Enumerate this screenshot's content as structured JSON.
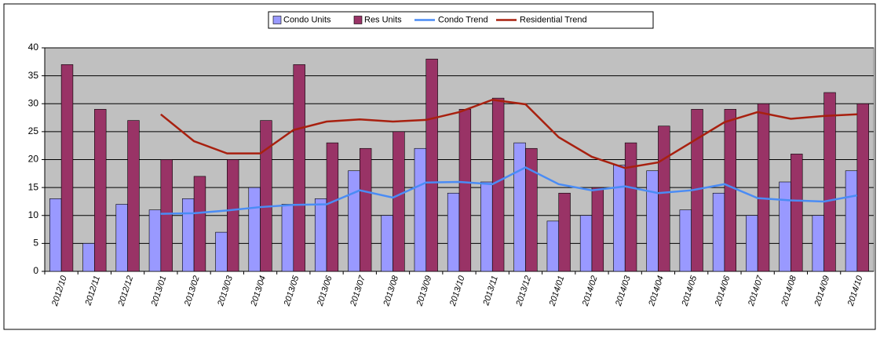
{
  "chart_data": {
    "type": "bar-line",
    "categories": [
      "2012/10",
      "2012/11",
      "2012/12",
      "2013/01",
      "2013/02",
      "2013/03",
      "2013/04",
      "2013/05",
      "2013/06",
      "2013/07",
      "2013/08",
      "2013/09",
      "2013/10",
      "2013/11",
      "2013/12",
      "2014/01",
      "2014/02",
      "2014/03",
      "2014/04",
      "2014/05",
      "2014/06",
      "2014/07",
      "2014/08",
      "2014/09",
      "2014/10"
    ],
    "series": [
      {
        "name": "Condo Units",
        "type": "bar",
        "color": "#9999ff",
        "values": [
          13,
          5,
          12,
          11,
          13,
          7,
          15,
          12,
          13,
          18,
          10,
          22,
          14,
          16,
          23,
          9,
          10,
          19,
          18,
          11,
          14,
          10,
          16,
          10,
          18
        ]
      },
      {
        "name": "Res Units",
        "type": "bar",
        "color": "#993366",
        "values": [
          37,
          29,
          27,
          20,
          17,
          20,
          27,
          37,
          23,
          22,
          25,
          38,
          29,
          31,
          22,
          14,
          15,
          23,
          26,
          29,
          29,
          30,
          21,
          32,
          30
        ]
      },
      {
        "name": "Condo Trend",
        "type": "line",
        "color": "#4a8cf5",
        "values": [
          null,
          null,
          null,
          10.3,
          10.4,
          10.9,
          11.5,
          11.9,
          12.0,
          14.5,
          13.2,
          15.9,
          16.0,
          15.6,
          18.6,
          15.6,
          14.5,
          15.2,
          14.0,
          14.5,
          15.6,
          13.1,
          12.7,
          12.5,
          13.6
        ]
      },
      {
        "name": "Residential Trend",
        "type": "line",
        "color": "#a8200f",
        "values": [
          null,
          null,
          null,
          28.1,
          23.3,
          21.1,
          21.1,
          25.3,
          26.8,
          27.2,
          26.8,
          27.1,
          28.5,
          30.7,
          29.9,
          24.0,
          20.5,
          18.5,
          19.5,
          23.1,
          26.7,
          28.5,
          27.3,
          27.8,
          28.1
        ]
      }
    ],
    "ylim": [
      0,
      40
    ],
    "yticks": [
      0,
      5,
      10,
      15,
      20,
      25,
      30,
      35,
      40
    ],
    "grid": true,
    "legend": "top"
  }
}
